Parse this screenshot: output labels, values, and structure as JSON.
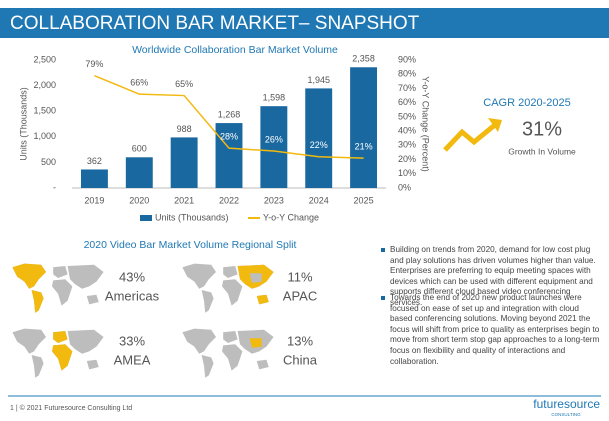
{
  "header": {
    "title": "COLLABORATION BAR MARKET– SNAPSHOT"
  },
  "chart_data": {
    "type": "bar",
    "title": "Worldwide Collaboration Bar Market Volume",
    "categories": [
      "2019",
      "2020",
      "2021",
      "2022",
      "2023",
      "2024",
      "2025"
    ],
    "series": [
      {
        "name": "Units (Thousands)",
        "color": "#1a68a0",
        "values": [
          362,
          600,
          988,
          1268,
          1598,
          1945,
          2358
        ],
        "value_labels": [
          "362",
          "600",
          "988",
          "1,268",
          "1,598",
          "1,945",
          "2,358"
        ]
      },
      {
        "name": "Y-o-Y Change",
        "color": "#f2b90f",
        "axis": "y2",
        "type": "line",
        "values": [
          79,
          66,
          65,
          28,
          26,
          22,
          21
        ],
        "value_labels": [
          "79%",
          "66%",
          "65%",
          "28%",
          "26%",
          "22%",
          "21%"
        ]
      }
    ],
    "ylabel": "Units (Thousands)",
    "y2label": "Y-o-Y Change (Percent)",
    "ylim": [
      0,
      2500
    ],
    "yticks": [
      {
        "value": 0,
        "label": "-"
      },
      500,
      {
        "value": 1000,
        "label": "1,000"
      },
      {
        "value": 1500,
        "label": "1,500"
      },
      {
        "value": 2000,
        "label": "2,000"
      },
      {
        "value": 2500,
        "label": "2,500"
      }
    ],
    "y2lim": [
      0,
      90
    ],
    "y2ticks": [
      {
        "value": 0,
        "label": "0%"
      },
      {
        "value": 10,
        "label": "10%"
      },
      {
        "value": 20,
        "label": "20%"
      },
      {
        "value": 30,
        "label": "30%"
      },
      {
        "value": 40,
        "label": "40%"
      },
      {
        "value": 50,
        "label": "50%"
      },
      {
        "value": 60,
        "label": "60%"
      },
      {
        "value": 70,
        "label": "70%"
      },
      {
        "value": 80,
        "label": "80%"
      },
      {
        "value": 90,
        "label": "90%"
      }
    ],
    "legend": "bottom"
  },
  "cagr": {
    "title": "CAGR 2020-2025",
    "value": "31%",
    "caption": "Growth In Volume"
  },
  "regional": {
    "title": "2020 Video Bar Market Volume Regional Split",
    "regions": [
      {
        "share": "43%",
        "name": "Americas"
      },
      {
        "share": "11%",
        "name": "APAC"
      },
      {
        "share": "33%",
        "name": "AMEA"
      },
      {
        "share": "13%",
        "name": "China"
      }
    ]
  },
  "bullets": [
    "Building on trends from 2020, demand for low cost plug and play solutions has driven volumes higher than value. Enterprises are preferring to equip meeting spaces with devices which can be used with different equipment and supports different cloud based video conferencing services.",
    "Towards the end of 2020 new product launches were focused on ease of set up and integration with cloud based conferencing solutions. Moving beyond 2021 the focus will shift from price to quality as enterprises begin to move from short term stop gap approaches to a long-term focus on flexibility and quality of interactions and collaboration."
  ],
  "footer": {
    "text": "1 | © 2021 Futuresource Consulting Ltd",
    "logo": "futuresource",
    "logo_sub": "CONSULTING"
  }
}
